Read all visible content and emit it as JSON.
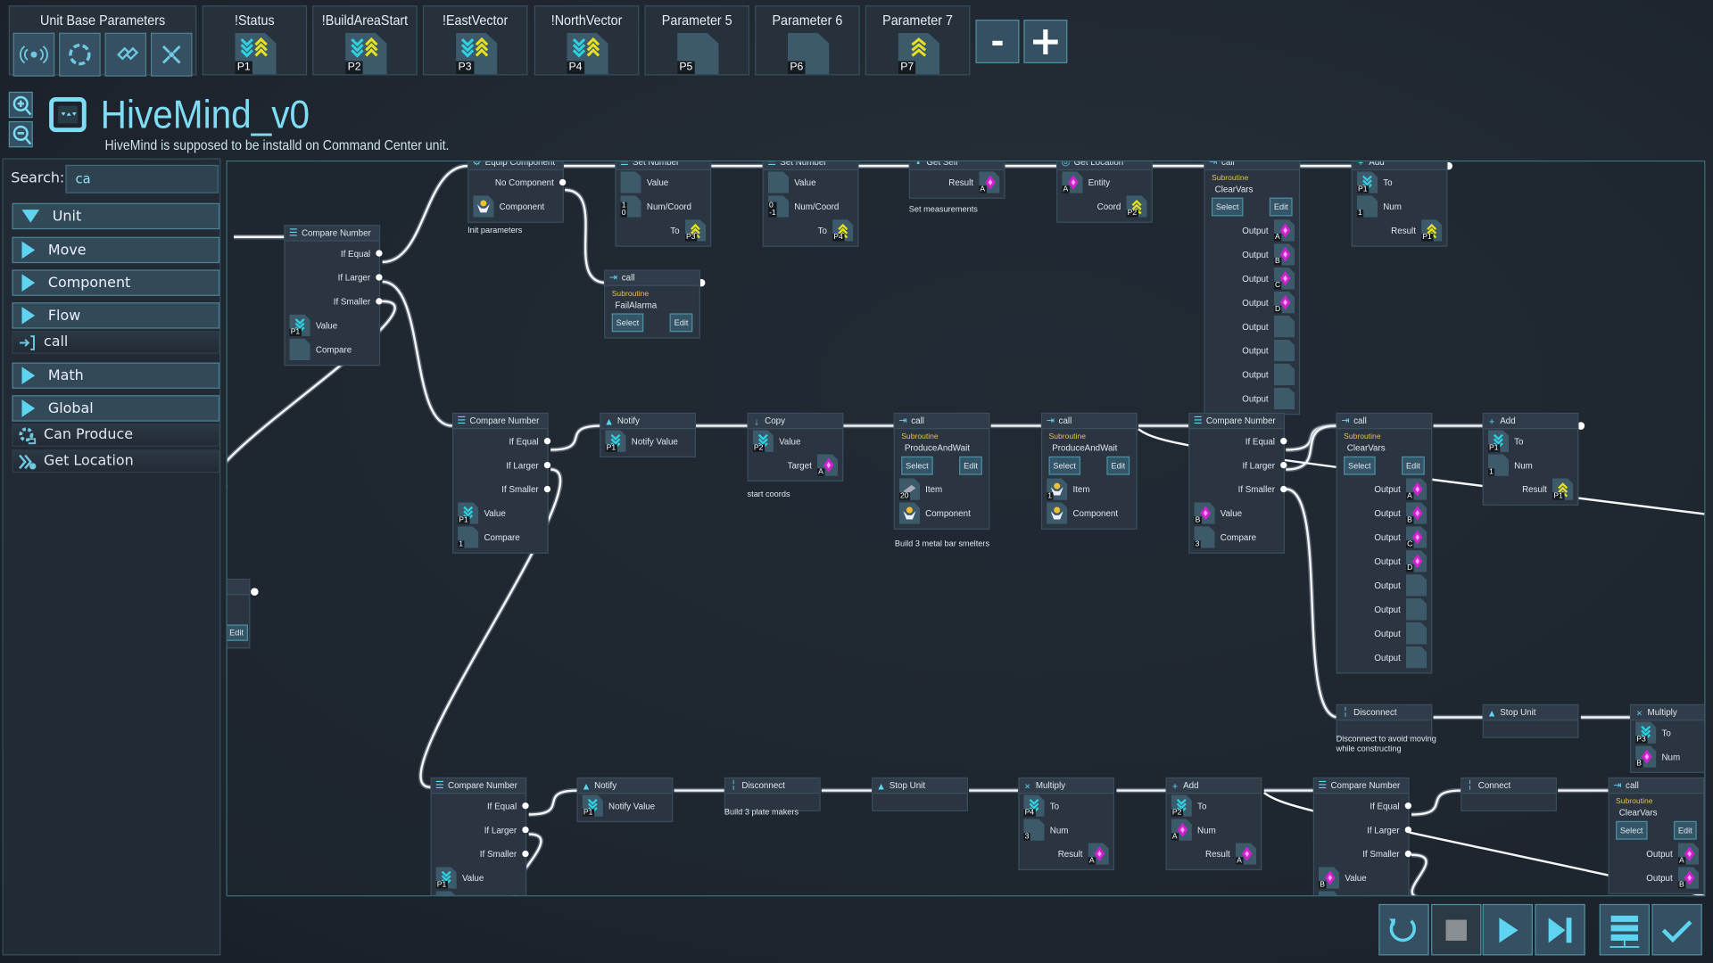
{
  "toolbar": {
    "unit_base_title": "Unit Base Parameters",
    "unit_base_icons": [
      "signal-icon",
      "cycle-icon",
      "link-icon",
      "collapse-icon"
    ],
    "parameters": [
      {
        "label": "!Status",
        "tag": "P1",
        "icon": "read-write"
      },
      {
        "label": "!BuildAreaStart",
        "tag": "P2",
        "icon": "read-write"
      },
      {
        "label": "!EastVector",
        "tag": "P3",
        "icon": "read-write"
      },
      {
        "label": "!NorthVector",
        "tag": "P4",
        "icon": "read-write"
      },
      {
        "label": "Parameter 5",
        "tag": "P5",
        "icon": "empty"
      },
      {
        "label": "Parameter 6",
        "tag": "P6",
        "icon": "empty"
      },
      {
        "label": "Parameter 7",
        "tag": "P7",
        "icon": "write"
      }
    ],
    "minus": "-",
    "plus": "+"
  },
  "header": {
    "title": "HiveMind_v0",
    "subtitle": "HiveMind is supposed to be installd on Command Center unit."
  },
  "sidebar": {
    "search_label": "Search:",
    "search_value": "ca",
    "entries": [
      {
        "type": "category",
        "label": "Unit",
        "expanded": true
      },
      {
        "type": "category",
        "label": "Move"
      },
      {
        "type": "category",
        "label": "Component"
      },
      {
        "type": "category",
        "label": "Flow"
      },
      {
        "type": "item",
        "label": "call",
        "icon": "call-icon"
      },
      {
        "type": "category",
        "label": "Math"
      },
      {
        "type": "category",
        "label": "Global"
      },
      {
        "type": "item",
        "label": "Can Produce",
        "icon": "gear-produce-icon"
      },
      {
        "type": "item",
        "label": "Get Location",
        "icon": "location-icon"
      }
    ]
  },
  "colors": {
    "accent": "#5fd4f0",
    "read": "#2fd0e0",
    "write": "#e6e020",
    "variable": "#d020d0",
    "subroutine": "#e4c14a"
  },
  "nodes": [
    {
      "title": "Equip Component",
      "icon": "equip",
      "rows": [
        {
          "t": "exit",
          "label": "No Component"
        },
        {
          "t": "in",
          "label": "Component",
          "s": {
            "icon": "component"
          }
        }
      ],
      "comment": "Init parameters"
    },
    {
      "title": "Set Number",
      "icon": "set",
      "rows": [
        {
          "t": "in",
          "label": "Value",
          "s": {
            "icon": "empty"
          }
        },
        {
          "t": "in",
          "label": "Num/Coord",
          "s": {
            "icon": "empty",
            "tag": "1\n0"
          }
        },
        {
          "t": "out",
          "label": "To",
          "s": {
            "icon": "write",
            "tag": "P3"
          }
        }
      ]
    },
    {
      "title": "Set Number",
      "icon": "set",
      "rows": [
        {
          "t": "in",
          "label": "Value",
          "s": {
            "icon": "empty"
          }
        },
        {
          "t": "in",
          "label": "Num/Coord",
          "s": {
            "icon": "empty",
            "tag": "0\n-1"
          }
        },
        {
          "t": "out",
          "label": "To",
          "s": {
            "icon": "write",
            "tag": "P4"
          }
        }
      ]
    },
    {
      "title": "Get Self",
      "icon": "self",
      "rows": [
        {
          "t": "out",
          "label": "Result",
          "s": {
            "icon": "diamond",
            "tag": "A"
          }
        }
      ],
      "comment": "Set measurements"
    },
    {
      "title": "Get Location",
      "icon": "loc",
      "rows": [
        {
          "t": "in",
          "label": "Entity",
          "s": {
            "icon": "diamond",
            "tag": "A"
          }
        },
        {
          "t": "out",
          "label": "Coord",
          "s": {
            "icon": "write",
            "tag": "P2"
          }
        }
      ]
    },
    {
      "title": "call",
      "icon": "call",
      "sub": {
        "label": "Subroutine",
        "name": "ClearVars",
        "select": "Select",
        "edit": "Edit"
      },
      "rows": [
        {
          "t": "out",
          "label": "Output",
          "s": {
            "icon": "diamond",
            "tag": "A"
          }
        },
        {
          "t": "out",
          "label": "Output",
          "s": {
            "icon": "diamond",
            "tag": "B"
          }
        },
        {
          "t": "out",
          "label": "Output",
          "s": {
            "icon": "diamond",
            "tag": "C"
          }
        },
        {
          "t": "out",
          "label": "Output",
          "s": {
            "icon": "diamond",
            "tag": "D"
          }
        },
        {
          "t": "out",
          "label": "Output",
          "s": {
            "icon": "empty"
          }
        },
        {
          "t": "out",
          "label": "Output",
          "s": {
            "icon": "empty"
          }
        },
        {
          "t": "out",
          "label": "Output",
          "s": {
            "icon": "empty"
          }
        },
        {
          "t": "out",
          "label": "Output",
          "s": {
            "icon": "empty"
          }
        }
      ]
    },
    {
      "title": "Add",
      "icon": "add",
      "rows": [
        {
          "t": "in",
          "label": "To",
          "s": {
            "icon": "read",
            "tag": "P1"
          }
        },
        {
          "t": "in",
          "label": "Num",
          "s": {
            "icon": "empty",
            "tag": "1"
          }
        },
        {
          "t": "out",
          "label": "Result",
          "s": {
            "icon": "write",
            "tag": "P1"
          }
        }
      ]
    },
    {
      "title": "Compare Number",
      "icon": "cmp",
      "rows": [
        {
          "t": "exit",
          "label": "If Equal"
        },
        {
          "t": "exit",
          "label": "If Larger"
        },
        {
          "t": "exit",
          "label": "If Smaller"
        },
        {
          "t": "in",
          "label": "Value",
          "s": {
            "icon": "read",
            "tag": "P1"
          }
        },
        {
          "t": "in",
          "label": "Compare",
          "s": {
            "icon": "empty"
          }
        }
      ]
    },
    {
      "title": "call",
      "icon": "call",
      "sub": {
        "label": "Subroutine",
        "name": "FailAlarma",
        "select": "Select",
        "edit": "Edit"
      },
      "rows": []
    },
    {
      "title": "Compare Number",
      "icon": "cmp",
      "rows": [
        {
          "t": "exit",
          "label": "If Equal"
        },
        {
          "t": "exit",
          "label": "If Larger"
        },
        {
          "t": "exit",
          "label": "If Smaller"
        },
        {
          "t": "in",
          "label": "Value",
          "s": {
            "icon": "read",
            "tag": "P1"
          }
        },
        {
          "t": "in",
          "label": "Compare",
          "s": {
            "icon": "empty",
            "tag": "1"
          }
        }
      ]
    },
    {
      "title": "Notify",
      "icon": "notify",
      "rows": [
        {
          "t": "in",
          "label": "Notify Value",
          "s": {
            "icon": "read",
            "tag": "P1"
          }
        }
      ]
    },
    {
      "title": "Copy",
      "icon": "copy",
      "rows": [
        {
          "t": "in",
          "label": "Value",
          "s": {
            "icon": "read",
            "tag": "P2"
          }
        },
        {
          "t": "out",
          "label": "Target",
          "s": {
            "icon": "diamond",
            "tag": "A"
          }
        }
      ],
      "comment": "start coords"
    },
    {
      "title": "call",
      "icon": "call",
      "sub": {
        "label": "Subroutine",
        "name": "ProduceAndWait",
        "select": "Select",
        "edit": "Edit"
      },
      "rows": [
        {
          "t": "in",
          "label": "Item",
          "s": {
            "icon": "item",
            "tag": "20"
          }
        },
        {
          "t": "in",
          "label": "Component",
          "s": {
            "icon": "component"
          }
        }
      ],
      "comment": "Build 3 metal bar smelters"
    },
    {
      "title": "call",
      "icon": "call",
      "sub": {
        "label": "Subroutine",
        "name": "ProduceAndWait",
        "select": "Select",
        "edit": "Edit"
      },
      "rows": [
        {
          "t": "in",
          "label": "Item",
          "s": {
            "icon": "component",
            "tag": "1"
          }
        },
        {
          "t": "in",
          "label": "Component",
          "s": {
            "icon": "component"
          }
        }
      ]
    },
    {
      "title": "Compare Number",
      "icon": "cmp",
      "rows": [
        {
          "t": "exit",
          "label": "If Equal"
        },
        {
          "t": "exit",
          "label": "If Larger"
        },
        {
          "t": "exit",
          "label": "If Smaller"
        },
        {
          "t": "in",
          "label": "Value",
          "s": {
            "icon": "diamond",
            "tag": "B"
          }
        },
        {
          "t": "in",
          "label": "Compare",
          "s": {
            "icon": "empty",
            "tag": "3"
          }
        }
      ]
    },
    {
      "title": "call",
      "icon": "call",
      "sub": {
        "label": "Subroutine",
        "name": "ClearVars",
        "select": "Select",
        "edit": "Edit"
      },
      "rows": [
        {
          "t": "out",
          "label": "Output",
          "s": {
            "icon": "diamond",
            "tag": "A"
          }
        },
        {
          "t": "out",
          "label": "Output",
          "s": {
            "icon": "diamond",
            "tag": "B"
          }
        },
        {
          "t": "out",
          "label": "Output",
          "s": {
            "icon": "diamond",
            "tag": "C"
          }
        },
        {
          "t": "out",
          "label": "Output",
          "s": {
            "icon": "diamond",
            "tag": "D"
          }
        },
        {
          "t": "out",
          "label": "Output",
          "s": {
            "icon": "empty"
          }
        },
        {
          "t": "out",
          "label": "Output",
          "s": {
            "icon": "empty"
          }
        },
        {
          "t": "out",
          "label": "Output",
          "s": {
            "icon": "empty"
          }
        },
        {
          "t": "out",
          "label": "Output",
          "s": {
            "icon": "empty"
          }
        }
      ]
    },
    {
      "title": "Add",
      "icon": "add",
      "rows": [
        {
          "t": "in",
          "label": "To",
          "s": {
            "icon": "read",
            "tag": "P1"
          }
        },
        {
          "t": "in",
          "label": "Num",
          "s": {
            "icon": "empty",
            "tag": "1"
          }
        },
        {
          "t": "out",
          "label": "Result",
          "s": {
            "icon": "write",
            "tag": "P1"
          }
        }
      ]
    },
    {
      "title": "Disconnect",
      "icon": "disc",
      "rows": [],
      "comment": "Disconnect to avoid moving\nwhile constructing"
    },
    {
      "title": "Stop Unit",
      "icon": "notify",
      "rows": []
    },
    {
      "title": "Multiply",
      "icon": "mul",
      "rows": [
        {
          "t": "in",
          "label": "To",
          "s": {
            "icon": "read",
            "tag": "P3"
          }
        },
        {
          "t": "in",
          "label": "Num",
          "s": {
            "icon": "diamond",
            "tag": "B"
          }
        }
      ]
    },
    {
      "title": "Compare Number",
      "icon": "cmp",
      "rows": [
        {
          "t": "exit",
          "label": "If Equal"
        },
        {
          "t": "exit",
          "label": "If Larger"
        },
        {
          "t": "exit",
          "label": "If Smaller"
        },
        {
          "t": "in",
          "label": "Value",
          "s": {
            "icon": "read",
            "tag": "P1"
          }
        },
        {
          "t": "in",
          "label": "Compare",
          "s": {
            "icon": "empty"
          }
        }
      ]
    },
    {
      "title": "Notify",
      "icon": "notify",
      "rows": [
        {
          "t": "in",
          "label": "Notify Value",
          "s": {
            "icon": "read",
            "tag": "P1"
          }
        }
      ]
    },
    {
      "title": "Disconnect",
      "icon": "disc",
      "rows": [],
      "comment": "Build 3 plate makers"
    },
    {
      "title": "Stop Unit",
      "icon": "notify",
      "rows": []
    },
    {
      "title": "Multiply",
      "icon": "mul",
      "rows": [
        {
          "t": "in",
          "label": "To",
          "s": {
            "icon": "read",
            "tag": "P4"
          }
        },
        {
          "t": "in",
          "label": "Num",
          "s": {
            "icon": "empty",
            "tag": "3"
          }
        },
        {
          "t": "out",
          "label": "Result",
          "s": {
            "icon": "diamond",
            "tag": "A"
          }
        }
      ]
    },
    {
      "title": "Add",
      "icon": "add",
      "rows": [
        {
          "t": "in",
          "label": "To",
          "s": {
            "icon": "read",
            "tag": "P2"
          }
        },
        {
          "t": "in",
          "label": "Num",
          "s": {
            "icon": "diamond",
            "tag": "A"
          }
        },
        {
          "t": "out",
          "label": "Result",
          "s": {
            "icon": "diamond",
            "tag": "A"
          }
        }
      ]
    },
    {
      "title": "Compare Number",
      "icon": "cmp",
      "rows": [
        {
          "t": "exit",
          "label": "If Equal"
        },
        {
          "t": "exit",
          "label": "If Larger"
        },
        {
          "t": "exit",
          "label": "If Smaller"
        },
        {
          "t": "in",
          "label": "Value",
          "s": {
            "icon": "diamond",
            "tag": "B"
          }
        },
        {
          "t": "in",
          "label": "Compare",
          "s": {
            "icon": "empty"
          }
        }
      ]
    },
    {
      "title": "Connect",
      "icon": "disc",
      "rows": []
    },
    {
      "title": "call",
      "icon": "call",
      "sub": {
        "label": "Subroutine",
        "name": "ClearVars",
        "select": "Select",
        "edit": "Edit"
      },
      "rows": [
        {
          "t": "out",
          "label": "Output",
          "s": {
            "icon": "diamond",
            "tag": "A"
          }
        },
        {
          "t": "out",
          "label": "Output",
          "s": {
            "icon": "diamond",
            "tag": "B"
          }
        }
      ]
    },
    {
      "title": "",
      "icon": "none",
      "rows": [],
      "edit": "Edit"
    }
  ],
  "controls": [
    {
      "name": "restart-button",
      "icon": "restart"
    },
    {
      "name": "stop-button",
      "icon": "stop"
    },
    {
      "name": "play-button",
      "icon": "play"
    },
    {
      "name": "step-button",
      "icon": "step"
    },
    {
      "name": "library-button",
      "icon": "library"
    },
    {
      "name": "confirm-button",
      "icon": "check"
    }
  ]
}
